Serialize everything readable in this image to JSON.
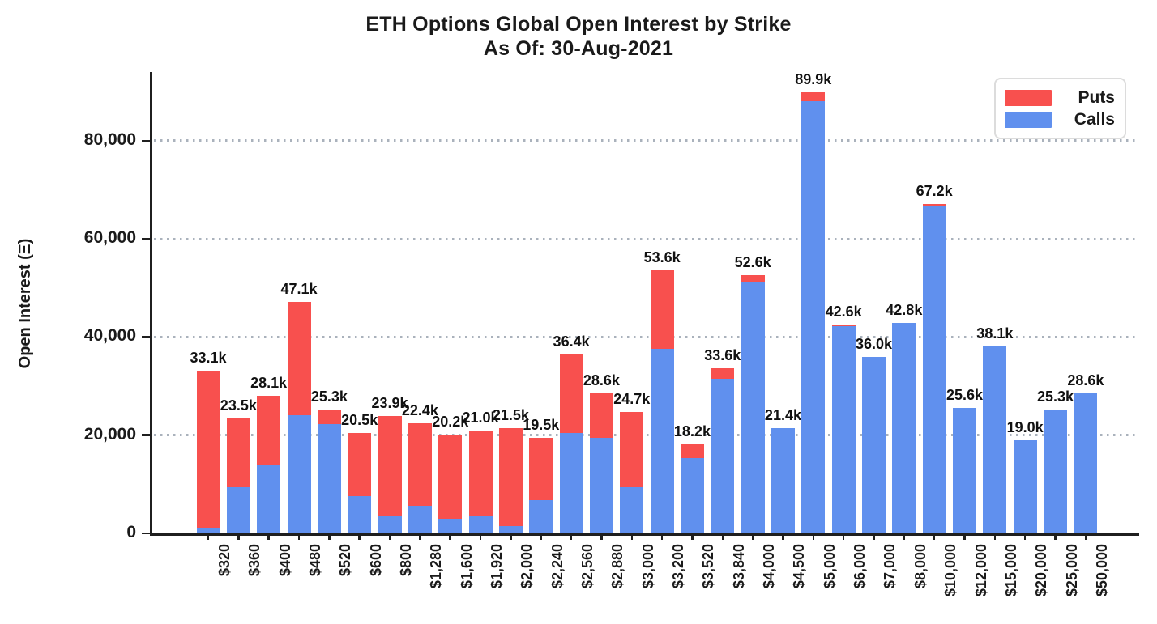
{
  "title": "ETH Options Global Open Interest by Strike",
  "subtitle": "As Of: 30-Aug-2021",
  "ylabel": "Open Interest (Ξ)",
  "legend": {
    "items": [
      {
        "label": "Puts",
        "color": "#F8504E"
      },
      {
        "label": "Calls",
        "color": "#6090EE"
      }
    ]
  },
  "colors": {
    "puts": "#F8504E",
    "calls": "#6090EE",
    "grid": "#aab2bc",
    "axis": "#1f1f1f",
    "text": "#1a1a1a"
  },
  "chart_data": {
    "type": "bar",
    "stacked": true,
    "title": "ETH Options Global Open Interest by Strike",
    "subtitle": "As Of: 30-Aug-2021",
    "xlabel": "",
    "ylabel": "Open Interest (Ξ)",
    "legend_position": "top-right",
    "grid": "horizontal-dotted",
    "categories": [
      "$320",
      "$360",
      "$400",
      "$480",
      "$520",
      "$600",
      "$800",
      "$1,280",
      "$1,600",
      "$1,920",
      "$2,000",
      "$2,240",
      "$2,560",
      "$2,880",
      "$3,000",
      "$3,200",
      "$3,520",
      "$3,840",
      "$4,000",
      "$4,500",
      "$5,000",
      "$6,000",
      "$7,000",
      "$8,000",
      "$10,000",
      "$12,000",
      "$15,000",
      "$20,000",
      "$25,000",
      "$50,000"
    ],
    "series": [
      {
        "name": "Calls",
        "color": "#6090EE",
        "values": [
          1200,
          9400,
          14000,
          24100,
          22300,
          7600,
          3600,
          5600,
          2900,
          3500,
          1500,
          6800,
          20400,
          19400,
          9400,
          37600,
          15400,
          31500,
          51300,
          21400,
          88000,
          42300,
          36000,
          42800,
          66800,
          25600,
          38100,
          19000,
          25300,
          28600
        ]
      },
      {
        "name": "Puts",
        "color": "#F8504E",
        "values": [
          31900,
          14100,
          14100,
          23000,
          3000,
          12900,
          20300,
          16800,
          17300,
          17500,
          20000,
          12700,
          16000,
          9200,
          15300,
          16000,
          2800,
          2100,
          1300,
          0,
          1900,
          300,
          0,
          0,
          400,
          0,
          0,
          0,
          0,
          0
        ]
      }
    ],
    "totals": [
      33100,
      23500,
      28100,
      47100,
      25300,
      20500,
      23900,
      22400,
      20200,
      21000,
      21500,
      19500,
      36400,
      28600,
      24700,
      53600,
      18200,
      33600,
      52600,
      21400,
      89900,
      42600,
      36000,
      42800,
      67200,
      25600,
      38100,
      19000,
      25300,
      28600
    ],
    "total_labels": [
      "33.1k",
      "23.5k",
      "28.1k",
      "47.1k",
      "25.3k",
      "20.5k",
      "23.9k",
      "22.4k",
      "20.2k",
      "21.0k",
      "21.5k",
      "19.5k",
      "36.4k",
      "28.6k",
      "24.7k",
      "53.6k",
      "18.2k",
      "33.6k",
      "52.6k",
      "21.4k",
      "89.9k",
      "42.6k",
      "36.0k",
      "42.8k",
      "67.2k",
      "25.6k",
      "38.1k",
      "19.0k",
      "25.3k",
      "28.6k"
    ],
    "yticks": [
      0,
      20000,
      40000,
      60000,
      80000
    ],
    "ytick_labels": [
      "0",
      "20,000",
      "40,000",
      "60,000",
      "80,000"
    ],
    "ylim": [
      0,
      94000
    ]
  }
}
